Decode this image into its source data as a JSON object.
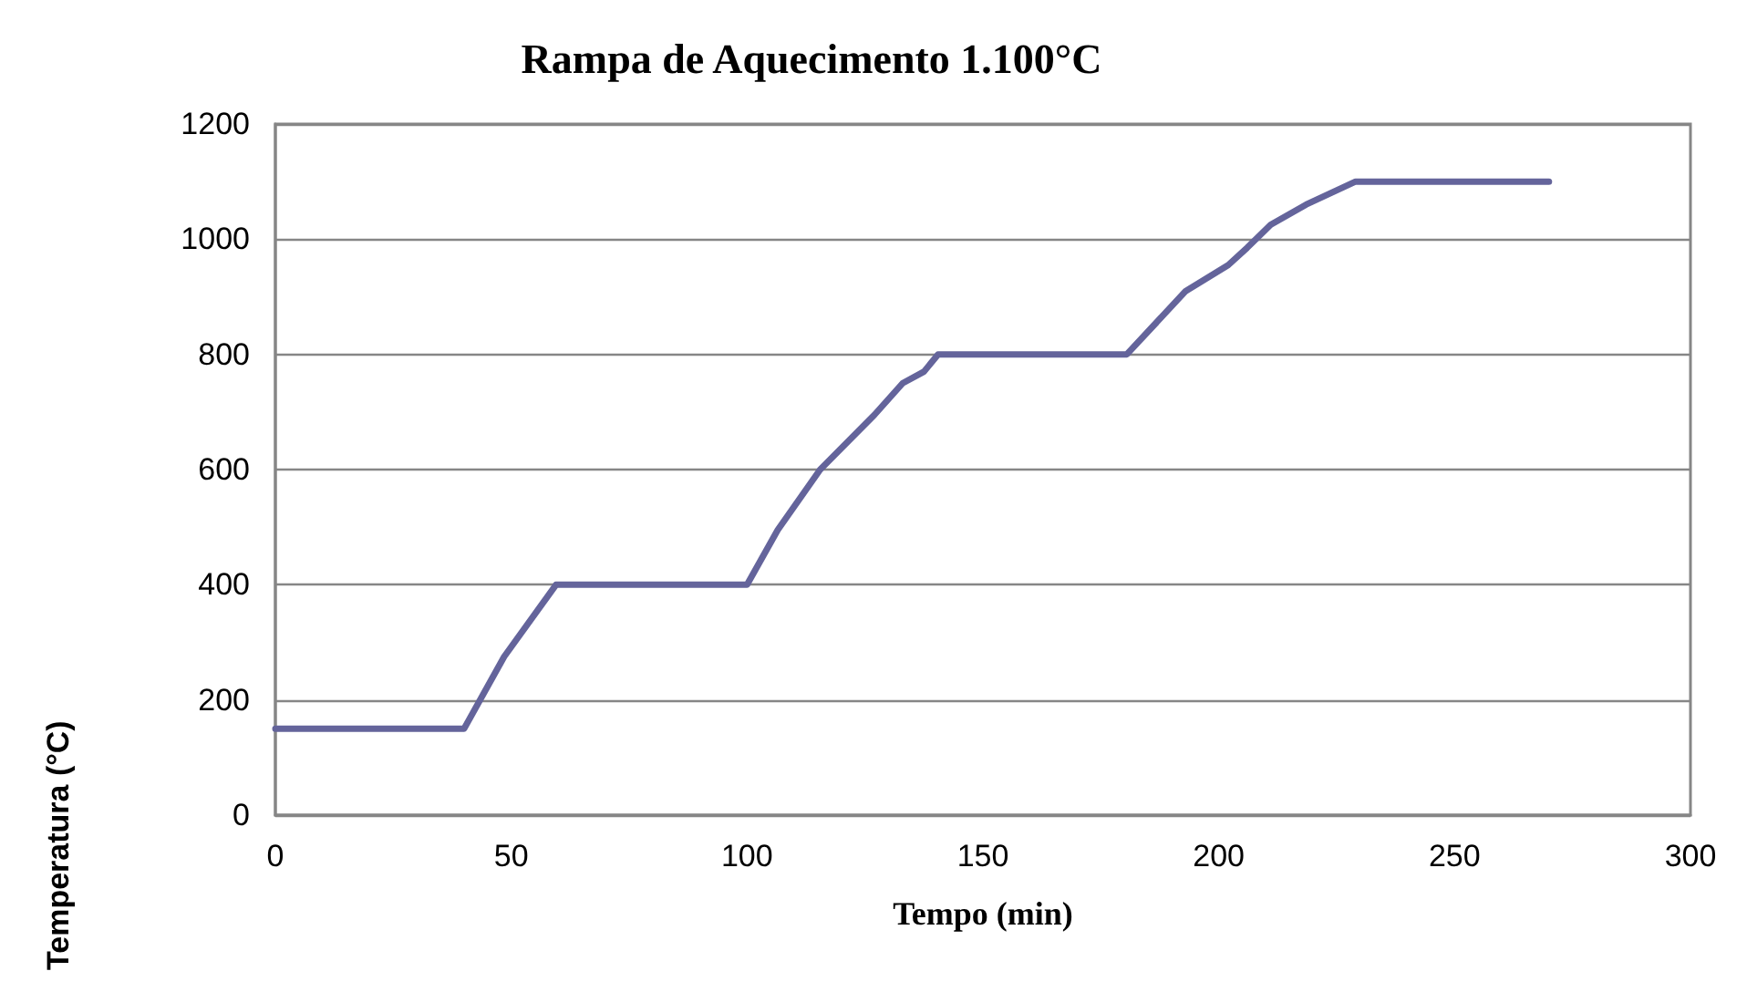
{
  "chart_data": {
    "type": "line",
    "title": "Rampa de Aquecimento 1.100°C",
    "xlabel": "Tempo (min)",
    "ylabel": "Temperatura (°C)",
    "x": [
      0,
      40,
      48.5,
      59.5,
      100,
      106.5,
      115.5,
      127,
      133,
      137.5,
      140.5,
      180.5,
      193,
      202,
      206,
      211,
      218.5,
      229,
      270
    ],
    "series": [
      {
        "color": "#64649b",
        "values": [
          150,
          150,
          275,
          400,
          400,
          495,
          600,
          695,
          750,
          770,
          800,
          800,
          910,
          955,
          985,
          1025,
          1060,
          1100,
          1100
        ]
      }
    ],
    "xlim": [
      0,
      300
    ],
    "xticks": [
      0,
      50,
      100,
      150,
      200,
      250,
      300
    ],
    "ylim": [
      0,
      1200
    ],
    "yticks": [
      0,
      200,
      400,
      600,
      800,
      1000,
      1200
    ],
    "grid": "y",
    "marker": "none",
    "line_style": "solid"
  }
}
